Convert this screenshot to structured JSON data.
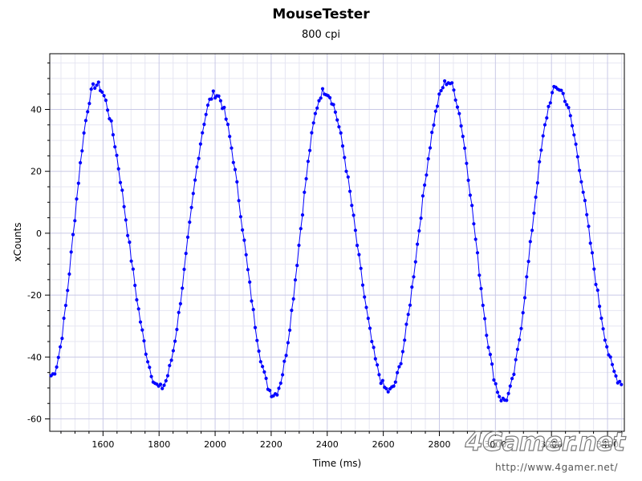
{
  "chart_data": {
    "type": "scatter",
    "title": "MouseTester",
    "subtitle": "800 cpi",
    "xlabel": "Time (ms)",
    "ylabel": "xCounts",
    "xlim": [
      1410,
      3460
    ],
    "ylim": [
      -64,
      58
    ],
    "x_ticks": [
      1600,
      1800,
      2000,
      2200,
      2400,
      2600,
      2800,
      3000,
      3200,
      3400
    ],
    "y_ticks": [
      -60,
      -40,
      -20,
      0,
      20,
      40
    ],
    "grid": true,
    "series": [
      {
        "color": "#0000ff",
        "style": "line+markers",
        "peaks": [
          {
            "x": 1575,
            "y": 48
          },
          {
            "x": 2000,
            "y": 45
          },
          {
            "x": 2390,
            "y": 46
          },
          {
            "x": 2830,
            "y": 49
          },
          {
            "x": 3220,
            "y": 47
          }
        ],
        "troughs": [
          {
            "x": 1805,
            "y": -50
          },
          {
            "x": 2210,
            "y": -52
          },
          {
            "x": 2620,
            "y": -51
          },
          {
            "x": 3030,
            "y": -54
          },
          {
            "x": 3450,
            "y": -48
          }
        ],
        "x_start": 1415,
        "y_start": -46
      }
    ]
  },
  "watermark": {
    "brand": "4Gamer.net",
    "url": "http://www.4gamer.net/"
  }
}
